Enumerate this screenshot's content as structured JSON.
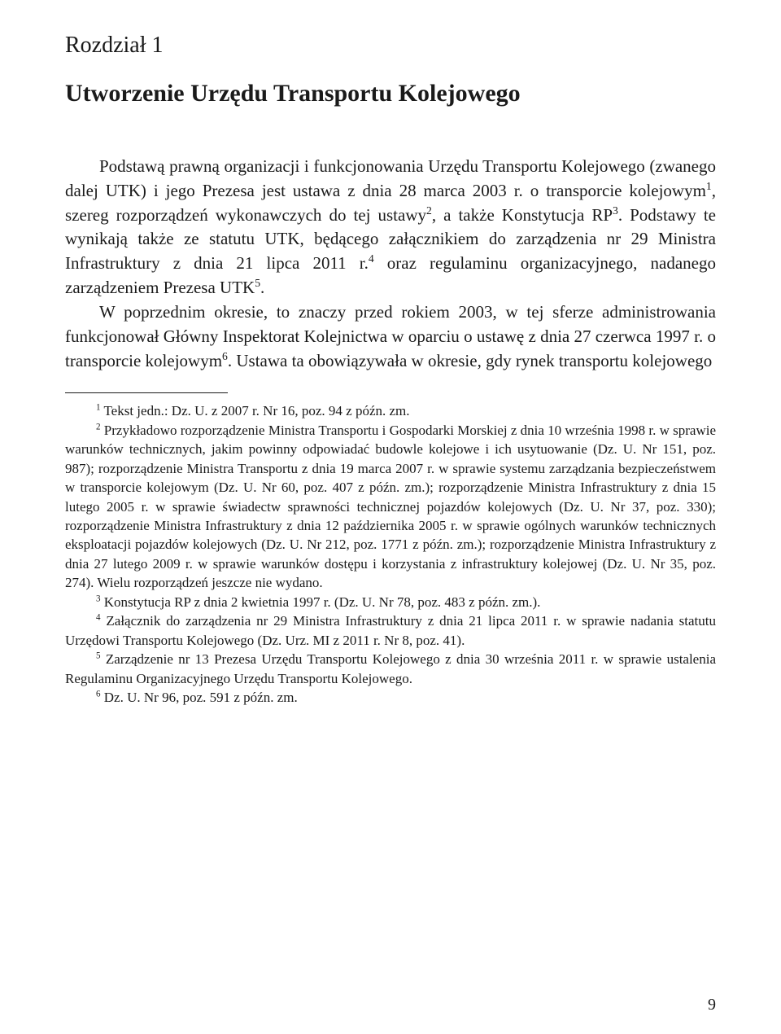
{
  "chapter_label": "Rozdział 1",
  "chapter_title": "Utworzenie Urzędu Transportu Kolejowego",
  "para1_a": "Podstawą prawną organizacji i funkcjonowania Urzędu Transportu Kolejowego (zwanego dalej UTK) i jego Prezesa jest ustawa z dnia 28 marca 2003 r. o transporcie kolejowym",
  "para1_b": ", szereg rozporządzeń wykonawczych do tej ustawy",
  "para1_c": ", a także Konstytucja RP",
  "para1_d": ". Podstawy te wynikają także ze statutu UTK, będącego załącznikiem do zarządzenia nr 29 Ministra Infrastruktury z dnia 21 lipca 2011 r.",
  "para1_e": " oraz regulaminu organizacyjnego, nadanego zarządzeniem Prezesa UTK",
  "para1_f": ".",
  "para2_a": "W poprzednim okresie, to znaczy przed rokiem 2003, w tej sferze administrowania funkcjonował Główny Inspektorat Kolejnictwa w oparciu o ustawę z dnia 27 czerwca 1997 r. o transporcie kolejowym",
  "para2_b": ". Ustawa ta obowiązywała w okresie, gdy rynek transportu kolejowego",
  "fn1": " Tekst jedn.: Dz. U. z 2007 r. Nr 16, poz. 94 z późn. zm.",
  "fn2": " Przykładowo rozporządzenie Ministra Transportu i Gospodarki Morskiej z dnia 10 września 1998 r. w sprawie warunków technicznych, jakim powinny odpowiadać budowle kolejowe i ich usytuowanie (Dz. U. Nr 151, poz. 987); rozporządzenie Ministra Transportu z dnia 19 marca 2007 r. w sprawie systemu zarządzania bezpieczeństwem w transporcie kolejowym (Dz. U. Nr 60, poz. 407 z późn. zm.); rozporządzenie Ministra Infrastruktury z dnia 15 lutego 2005 r. w sprawie świadectw sprawności technicznej pojazdów kolejowych (Dz. U. Nr 37, poz. 330); rozporządzenie Ministra Infrastruktury z dnia 12 października 2005 r. w sprawie ogólnych warunków technicznych eksploatacji pojazdów kolejowych (Dz. U. Nr 212, poz. 1771 z późn. zm.); rozporządzenie Ministra Infrastruktury z dnia 27 lutego 2009 r. w sprawie warunków dostępu i korzystania z infrastruktury kolejowej (Dz. U. Nr 35, poz. 274). Wielu rozporządzeń jeszcze nie wydano.",
  "fn3": " Konstytucja RP z dnia 2 kwietnia 1997 r. (Dz. U. Nr 78, poz. 483 z późn. zm.).",
  "fn4": " Załącznik do zarządzenia nr 29 Ministra Infrastruktury z dnia 21 lipca 2011 r. w sprawie nadania statutu Urzędowi Transportu Kolejowego (Dz. Urz. MI z 2011 r. Nr 8, poz. 41).",
  "fn5": " Zarządzenie nr 13 Prezesa Urzędu Transportu Kolejowego z dnia 30 września 2011 r. w sprawie ustalenia Regulaminu Organizacyjnego Urzędu Transportu Kolejowego.",
  "fn6": " Dz. U. Nr 96, poz. 591 z późn. zm.",
  "sup1": "1",
  "sup2": "2",
  "sup3": "3",
  "sup4": "4",
  "sup5": "5",
  "sup6": "6",
  "page_number": "9"
}
